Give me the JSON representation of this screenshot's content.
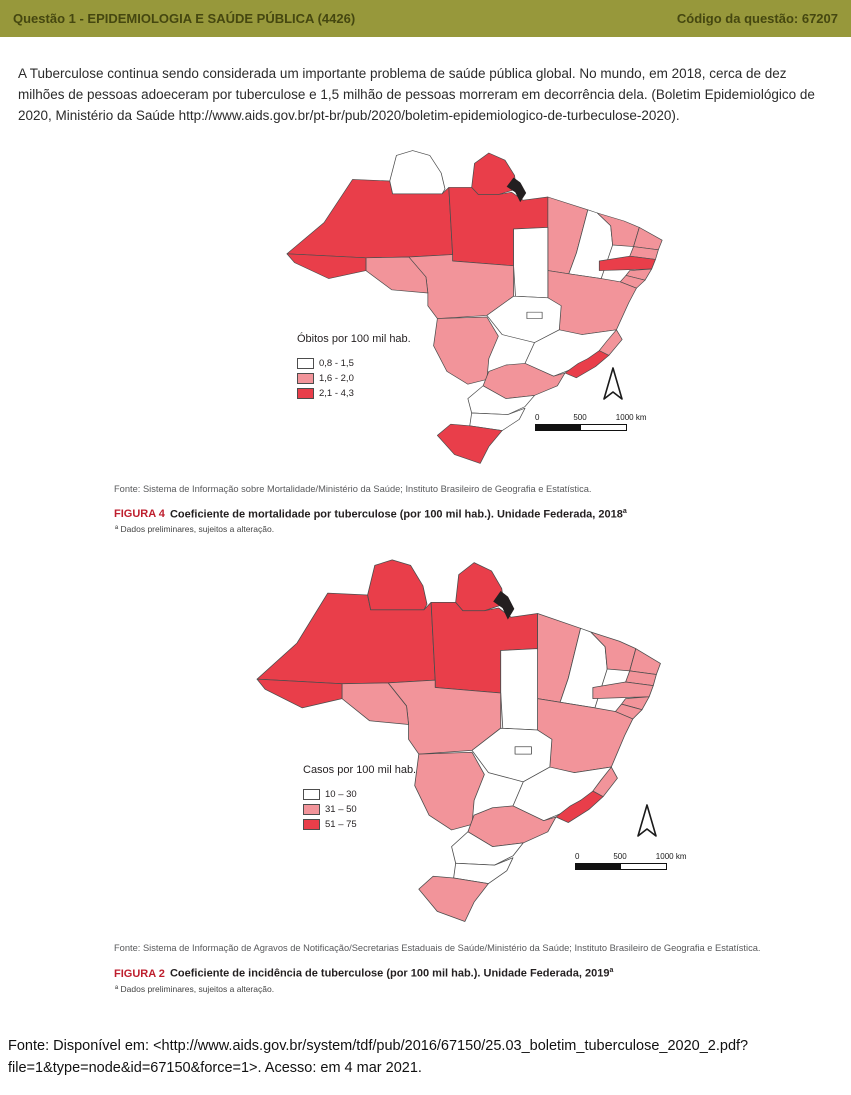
{
  "header": {
    "title": "Questão 1 - EPIDEMIOLOGIA E SAÚDE PÚBLICA (4426)",
    "code": "Código da questão: 67207"
  },
  "question": {
    "paragraph": "A Tuberculose continua sendo considerada um importante problema de saúde pública global. No mundo, em 2018, cerca de dez milhões de pessoas adoeceram por tuberculose e 1,5 milhão de pessoas morreram em decorrência dela. (Boletim Epidemiológico de 2020, Ministério da Saúde http://www.aids.gov.br/pt-br/pub/2020/boletim-epidemiologico-de-turbeculose-2020)."
  },
  "figures": [
    {
      "map_title": "Óbitos por 100 mil hab.",
      "legend": [
        {
          "label": "0,8 - 1,5",
          "category": "low"
        },
        {
          "label": "1,6 - 2,0",
          "category": "mid"
        },
        {
          "label": "2,1 - 4,3",
          "category": "high"
        }
      ],
      "scale": [
        "0",
        "500",
        "1000 km"
      ],
      "fonte": "Fonte: Sistema de Informação sobre Mortalidade/Ministério da Saúde; Instituto Brasileiro de Geografia e Estatística.",
      "figura_label": "FIGURA 4",
      "caption": "Coeficiente de mortalidade por tuberculose (por 100 mil hab.). Unidade Federada, 2018",
      "caption_sup": "a",
      "footnote": "ª Dados preliminares, sujeitos a alteração.",
      "states": {
        "AC": "high",
        "AM": "high",
        "RR": "low",
        "AP": "high",
        "PA": "high",
        "RO": "mid",
        "MT": "mid",
        "TO": "low",
        "MA": "mid",
        "PI": "low",
        "CE": "mid",
        "RN": "mid",
        "PB": "mid",
        "PE": "high",
        "AL": "mid",
        "SE": "mid",
        "BA": "mid",
        "GO": "low",
        "DF": "low",
        "MG": "low",
        "ES": "mid",
        "RJ": "high",
        "SP": "mid",
        "MS": "mid",
        "PR": "low",
        "SC": "low",
        "RS": "high"
      }
    },
    {
      "map_title": "Casos por 100 mil hab.",
      "legend": [
        {
          "label": "10 – 30",
          "category": "low"
        },
        {
          "label": "31 – 50",
          "category": "mid"
        },
        {
          "label": "51 – 75",
          "category": "high"
        }
      ],
      "scale": [
        "0",
        "500",
        "1000 km"
      ],
      "fonte": "Fonte: Sistema de Informação de Agravos de Notificação/Secretarias Estaduais de Saúde/Ministério da Saúde; Instituto Brasileiro de Geografia e Estatística.",
      "figura_label": "FIGURA 2",
      "caption": "Coeficiente de incidência de tuberculose (por 100 mil hab.). Unidade Federada, 2019",
      "caption_sup": "a",
      "footnote": "ª Dados preliminares, sujeitos a alteração.",
      "states": {
        "AC": "high",
        "AM": "high",
        "RR": "high",
        "AP": "high",
        "PA": "high",
        "RO": "mid",
        "MT": "mid",
        "TO": "low",
        "MA": "mid",
        "PI": "low",
        "CE": "mid",
        "RN": "mid",
        "PB": "mid",
        "PE": "mid",
        "AL": "mid",
        "SE": "mid",
        "BA": "mid",
        "GO": "low",
        "DF": "low",
        "MG": "low",
        "ES": "mid",
        "RJ": "high",
        "SP": "mid",
        "MS": "mid",
        "PR": "low",
        "SC": "low",
        "RS": "mid"
      }
    }
  ],
  "colors": {
    "low": "#FFFFFF",
    "mid": "#F2949A",
    "high": "#E93E4A",
    "state_border": "#4d4d4d",
    "header_bg": "#97983B",
    "header_text": "#454710",
    "figura_label": "#BE1E2D"
  },
  "source": {
    "text": "Fonte: Disponível em: <http://www.aids.gov.br/system/tdf/pub/2016/67150/25.03_boletim_tuberculose_2020_2.pdf?file=1&type=node&id=67150&force=1>. Acesso: em 4 mar 2021."
  }
}
